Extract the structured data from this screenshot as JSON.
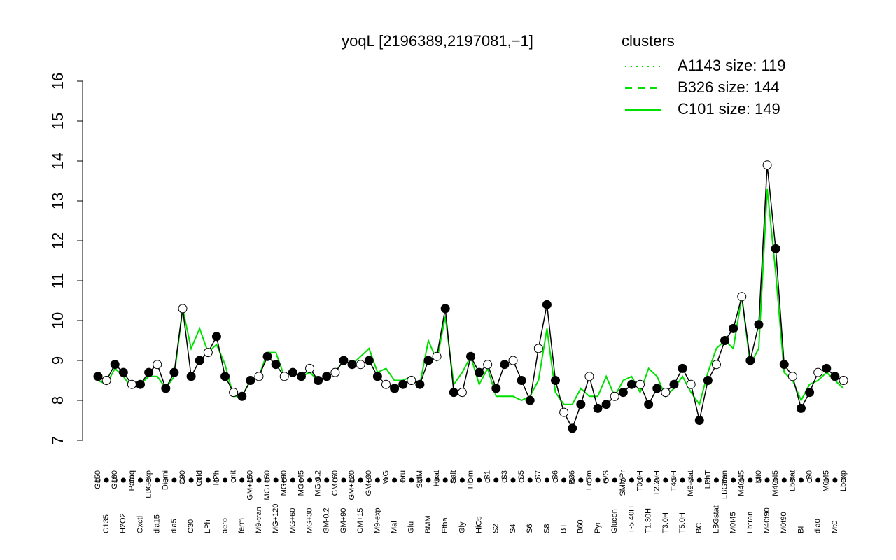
{
  "chart_data": {
    "type": "line",
    "title": "yoqL [2196389,2197081,−1]",
    "legend_title": "clusters",
    "legend_color": "#00e000",
    "ylim": [
      7,
      16
    ],
    "yticks": [
      7,
      8,
      9,
      10,
      11,
      12,
      13,
      14,
      15,
      16
    ],
    "categories": [
      "G150",
      "G135",
      "G180",
      "H2O2",
      "Paraq",
      "Oxctl",
      "LBGexp",
      "dia15",
      "Diami",
      "dia5",
      "C90",
      "C30",
      "Cold",
      "LPh",
      "HPh",
      "aero",
      "nit",
      "ferm",
      "GM+150",
      "M9-tran",
      "MG+150",
      "MG+120",
      "MG+90",
      "MG+60",
      "MG+45",
      "MG+30",
      "MG-0.2",
      "GM-0.2",
      "GM+60",
      "GM+90",
      "GM+120",
      "GM+15",
      "GM+30",
      "M9-exp",
      "M/G",
      "Mal",
      "Fru",
      "Glu",
      "SMM",
      "BMM",
      "Heat",
      "Etha",
      "Salt",
      "Gly",
      "HiTm",
      "HiOs",
      "S1",
      "S2",
      "S3",
      "S4",
      "S5",
      "S6",
      "S7",
      "S8",
      "S6",
      "BT",
      "B36",
      "B60",
      "LoTm",
      "Pyr",
      "G/S",
      "Glucon",
      "SMMPr",
      "T-5.40H",
      "T0.0H",
      "T1.30H",
      "T2.30H",
      "T3.0H",
      "T4.0H",
      "T5.0H",
      "M9-stat",
      "BC",
      "LPhT",
      "LBGstat",
      "LBGtran",
      "M0t45",
      "M40t45",
      "Lbtran",
      "Mt0",
      "M40t90",
      "M40t45",
      "M0t90",
      "Lbstat",
      "BI",
      "S0",
      "dia0",
      "M0t45",
      "Mt0",
      "Lbexp"
    ],
    "values": [
      8.6,
      8.5,
      8.9,
      8.7,
      8.4,
      8.4,
      8.7,
      8.9,
      8.3,
      8.7,
      10.3,
      8.6,
      9.0,
      9.2,
      9.6,
      8.6,
      8.2,
      8.1,
      8.5,
      8.6,
      9.1,
      8.9,
      8.6,
      8.7,
      8.6,
      8.8,
      8.5,
      8.6,
      8.7,
      9.0,
      8.9,
      8.9,
      9.0,
      8.6,
      8.4,
      8.3,
      8.4,
      8.5,
      8.4,
      9.0,
      9.1,
      10.3,
      8.2,
      8.2,
      9.1,
      8.7,
      8.9,
      8.3,
      8.9,
      9.0,
      8.5,
      8.0,
      9.3,
      10.4,
      8.5,
      7.7,
      7.3,
      7.9,
      8.6,
      7.8,
      7.9,
      8.1,
      8.2,
      8.4,
      8.4,
      7.9,
      8.3,
      8.2,
      8.4,
      8.8,
      8.4,
      7.5,
      8.5,
      8.9,
      9.5,
      9.8,
      10.6,
      9.0,
      9.9,
      13.9,
      11.8,
      8.9,
      8.6,
      7.8,
      8.2,
      8.7,
      8.8,
      8.6,
      8.5
    ],
    "color": "#000000",
    "series": [
      {
        "name": "A1143 size: 119",
        "color": "#00e000",
        "dash": "dotted"
      },
      {
        "name": "B326 size: 144",
        "color": "#00e000",
        "dash": "dashed"
      },
      {
        "name": "C101 size: 149",
        "color": "#00e000",
        "dash": "solid",
        "values": [
          8.5,
          8.4,
          8.8,
          8.6,
          8.3,
          8.4,
          8.6,
          8.6,
          8.3,
          8.6,
          10.3,
          9.3,
          9.8,
          9.2,
          9.4,
          8.9,
          8.1,
          8.1,
          8.5,
          8.6,
          9.2,
          9.2,
          8.6,
          8.7,
          8.6,
          8.7,
          8.5,
          8.6,
          8.7,
          9.0,
          8.9,
          9.1,
          9.3,
          8.7,
          8.8,
          8.5,
          8.5,
          8.6,
          8.4,
          9.5,
          9.0,
          10.1,
          8.4,
          8.7,
          9.1,
          8.4,
          8.8,
          8.1,
          8.1,
          8.1,
          8.0,
          8.1,
          8.5,
          9.8,
          8.2,
          7.9,
          7.9,
          8.3,
          8.1,
          8.1,
          8.6,
          8.1,
          8.5,
          8.6,
          8.2,
          8.8,
          8.6,
          8.1,
          8.3,
          8.6,
          8.2,
          7.9,
          8.7,
          9.3,
          9.5,
          9.3,
          10.6,
          8.9,
          9.3,
          13.3,
          11.2,
          8.7,
          8.5,
          8.0,
          8.4,
          8.5,
          8.7,
          8.5,
          8.3
        ]
      }
    ]
  }
}
